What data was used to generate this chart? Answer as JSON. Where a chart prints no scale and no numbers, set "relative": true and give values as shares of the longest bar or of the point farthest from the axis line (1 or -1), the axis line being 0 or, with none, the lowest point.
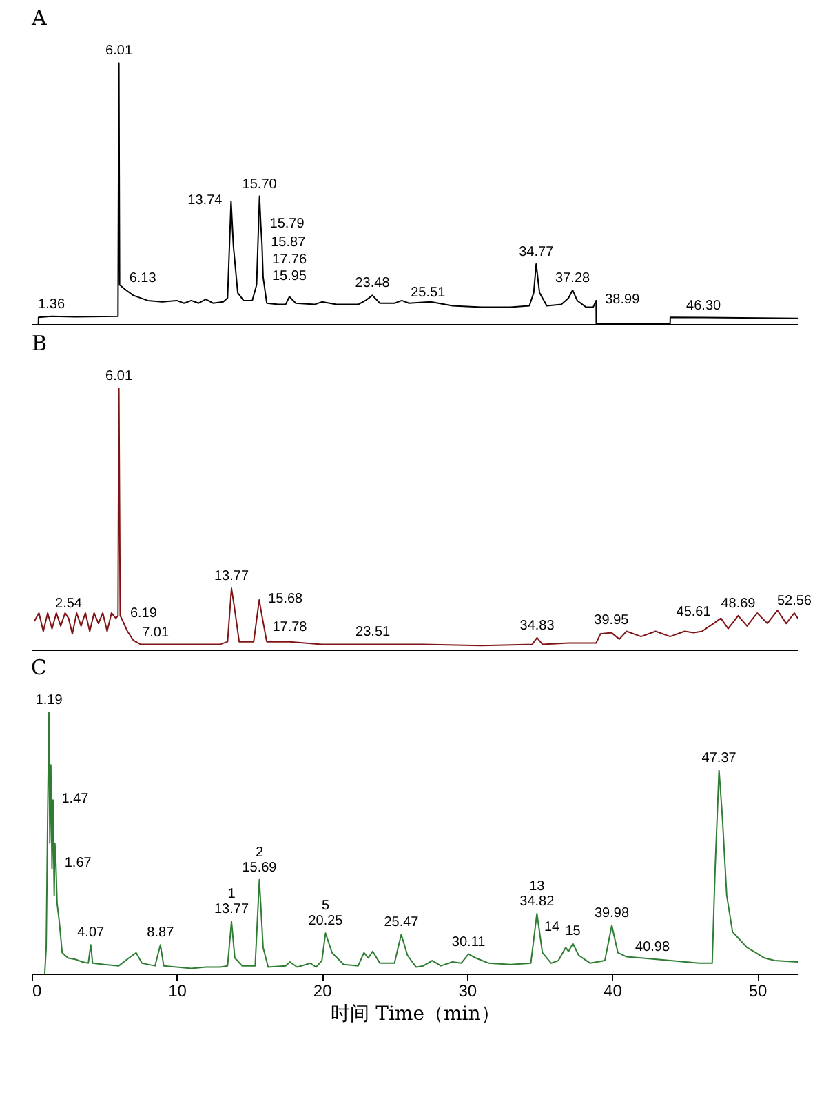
{
  "chart_data": [
    {
      "type": "line",
      "title": "A",
      "relative": true,
      "xlim": [
        0,
        52.8
      ],
      "xticks": [
        0,
        10,
        20,
        30,
        40,
        50
      ],
      "tick_labels": false,
      "series": [
        {
          "color": "#000000",
          "x": [
            0.46,
            0.47,
            1.36,
            3,
            5.95,
            6.01,
            6.06,
            6.5,
            7,
            8,
            9,
            10,
            10.5,
            11,
            11.5,
            12,
            12.5,
            13.2,
            13.5,
            13.74,
            13.9,
            14.2,
            14.6,
            15.2,
            15.5,
            15.7,
            15.79,
            15.87,
            15.95,
            16.2,
            17,
            17.5,
            17.76,
            18.2,
            19.5,
            20,
            21,
            22.5,
            23,
            23.48,
            24,
            25,
            25.51,
            26,
            27.5,
            29,
            31,
            33,
            34.3,
            34.6,
            34.77,
            35,
            35.5,
            36.5,
            37,
            37.28,
            37.6,
            38.2,
            38.7,
            38.9,
            38.91,
            44,
            44.01,
            46.3,
            52.8
          ],
          "values": [
            0,
            0.026,
            0.03,
            0.028,
            0.03,
            1.0,
            0.15,
            0.13,
            0.11,
            0.09,
            0.085,
            0.09,
            0.08,
            0.09,
            0.08,
            0.095,
            0.08,
            0.085,
            0.1,
            0.47,
            0.3,
            0.12,
            0.09,
            0.09,
            0.15,
            0.49,
            0.38,
            0.31,
            0.18,
            0.08,
            0.075,
            0.075,
            0.105,
            0.08,
            0.075,
            0.085,
            0.075,
            0.075,
            0.09,
            0.11,
            0.08,
            0.08,
            0.09,
            0.08,
            0.085,
            0.07,
            0.065,
            0.065,
            0.07,
            0.12,
            0.23,
            0.12,
            0.07,
            0.075,
            0.1,
            0.13,
            0.09,
            0.065,
            0.065,
            0.09,
            0,
            0,
            0.026,
            0.025,
            0.022
          ]
        }
      ],
      "annotations": [
        {
          "text": "1.36",
          "x": 1.36,
          "y": 0.03
        },
        {
          "text": "6.01",
          "x": 6.01,
          "y": 1.0
        },
        {
          "text": "6.13",
          "x": 6.13,
          "y": 0.15
        },
        {
          "text": "13.74",
          "x": 13.74,
          "y": 0.47
        },
        {
          "text": "15.70",
          "x": 15.7,
          "y": 0.49
        },
        {
          "text": "15.79",
          "x": 15.79,
          "y": 0.38
        },
        {
          "text": "15.87",
          "x": 15.87,
          "y": 0.31
        },
        {
          "text": "15.95",
          "x": 15.95,
          "y": 0.18
        },
        {
          "text": "17.76",
          "x": 17.76,
          "y": 0.105
        },
        {
          "text": "23.48",
          "x": 23.48,
          "y": 0.11
        },
        {
          "text": "25.51",
          "x": 25.51,
          "y": 0.09
        },
        {
          "text": "34.77",
          "x": 34.77,
          "y": 0.23
        },
        {
          "text": "37.28",
          "x": 37.28,
          "y": 0.13
        },
        {
          "text": "38.99",
          "x": 38.9,
          "y": 0.09
        },
        {
          "text": "46.30",
          "x": 46.3,
          "y": 0.025
        }
      ]
    },
    {
      "type": "line",
      "title": "B",
      "relative": true,
      "xlim": [
        0,
        52.8
      ],
      "xticks": [
        0,
        10,
        20,
        30,
        40,
        50
      ],
      "tick_labels": false,
      "series": [
        {
          "color": "#7f1416",
          "x": [
            0.2,
            0.5,
            0.8,
            1.1,
            1.4,
            1.7,
            2,
            2.3,
            2.54,
            2.8,
            3.1,
            3.4,
            3.7,
            4,
            4.3,
            4.6,
            4.9,
            5.2,
            5.5,
            5.8,
            5.95,
            6.01,
            6.1,
            6.19,
            6.6,
            7.01,
            7.5,
            9,
            11,
            13,
            13.5,
            13.77,
            14,
            14.3,
            15.3,
            15.68,
            15.9,
            16.2,
            17.78,
            20,
            23.51,
            27,
            31,
            34.5,
            34.83,
            35.2,
            37,
            38.9,
            39.2,
            39.95,
            40.5,
            41,
            42,
            43,
            44,
            45,
            45.61,
            46.2,
            47,
            47.5,
            48,
            48.69,
            49.3,
            50,
            50.7,
            51.4,
            52,
            52.56,
            52.8
          ],
          "values": [
            0.11,
            0.14,
            0.07,
            0.14,
            0.08,
            0.14,
            0.09,
            0.14,
            0.12,
            0.06,
            0.14,
            0.09,
            0.14,
            0.07,
            0.14,
            0.1,
            0.14,
            0.07,
            0.14,
            0.12,
            0.13,
            1.0,
            0.13,
            0.12,
            0.07,
            0.035,
            0.02,
            0.02,
            0.02,
            0.02,
            0.03,
            0.235,
            0.15,
            0.03,
            0.03,
            0.19,
            0.12,
            0.03,
            0.03,
            0.02,
            0.02,
            0.02,
            0.015,
            0.02,
            0.045,
            0.02,
            0.025,
            0.025,
            0.06,
            0.065,
            0.04,
            0.07,
            0.05,
            0.07,
            0.05,
            0.07,
            0.065,
            0.07,
            0.1,
            0.12,
            0.08,
            0.13,
            0.09,
            0.14,
            0.1,
            0.15,
            0.1,
            0.14,
            0.12
          ]
        }
      ],
      "annotations": [
        {
          "text": "2.54",
          "x": 2.54,
          "y": 0.12
        },
        {
          "text": "6.01",
          "x": 6.01,
          "y": 1.0
        },
        {
          "text": "6.19",
          "x": 6.19,
          "y": 0.12
        },
        {
          "text": "7.01",
          "x": 7.01,
          "y": 0.035
        },
        {
          "text": "13.77",
          "x": 13.77,
          "y": 0.235
        },
        {
          "text": "15.68",
          "x": 15.68,
          "y": 0.19
        },
        {
          "text": "17.78",
          "x": 17.78,
          "y": 0.03
        },
        {
          "text": "23.51",
          "x": 23.51,
          "y": 0.02
        },
        {
          "text": "34.83",
          "x": 34.83,
          "y": 0.045
        },
        {
          "text": "39.95",
          "x": 39.95,
          "y": 0.065
        },
        {
          "text": "45.61",
          "x": 45.61,
          "y": 0.065
        },
        {
          "text": "48.69",
          "x": 48.69,
          "y": 0.13
        },
        {
          "text": "52.56",
          "x": 52.56,
          "y": 0.14
        }
      ]
    },
    {
      "type": "line",
      "title": "C",
      "relative": true,
      "xlim": [
        0,
        52.8
      ],
      "xticks": [
        0,
        10,
        20,
        30,
        40,
        50
      ],
      "xlabel": "时间 Time（min）",
      "series": [
        {
          "color": "#2e7d32",
          "x": [
            0.9,
            1.0,
            1.1,
            1.19,
            1.25,
            1.32,
            1.4,
            1.47,
            1.55,
            1.6,
            1.67,
            1.75,
            1.9,
            2.1,
            2.5,
            3,
            3.5,
            3.9,
            4.07,
            4.2,
            5,
            6,
            6.7,
            7.2,
            7.6,
            8.5,
            8.87,
            9.1,
            10,
            11,
            12,
            13,
            13.5,
            13.77,
            14,
            14.5,
            15.4,
            15.69,
            15.95,
            16.3,
            17.5,
            17.8,
            18.3,
            19.2,
            19.6,
            20,
            20.25,
            20.7,
            21.5,
            22.5,
            22.9,
            23.2,
            23.5,
            24,
            25,
            25.47,
            25.9,
            26.5,
            27,
            27.6,
            28.2,
            29,
            29.6,
            30.11,
            30.6,
            31.5,
            33,
            34.4,
            34.82,
            35.2,
            35.8,
            36.3,
            36.8,
            37,
            37.3,
            37.7,
            38.5,
            39.5,
            39.98,
            40.4,
            40.98,
            42,
            44,
            46,
            46.9,
            47.1,
            47.37,
            47.6,
            47.9,
            48.3,
            48.8,
            49.3,
            49.9,
            50.5,
            51.2,
            52.8
          ],
          "values": [
            0,
            0.1,
            0.6,
            1.0,
            0.5,
            0.8,
            0.4,
            0.665,
            0.3,
            0.5,
            0.42,
            0.27,
            0.2,
            0.08,
            0.06,
            0.055,
            0.045,
            0.04,
            0.11,
            0.04,
            0.035,
            0.03,
            0.06,
            0.08,
            0.04,
            0.03,
            0.11,
            0.03,
            0.025,
            0.02,
            0.025,
            0.025,
            0.03,
            0.2,
            0.06,
            0.03,
            0.03,
            0.36,
            0.1,
            0.025,
            0.03,
            0.045,
            0.025,
            0.04,
            0.025,
            0.05,
            0.155,
            0.08,
            0.035,
            0.03,
            0.08,
            0.06,
            0.085,
            0.04,
            0.04,
            0.15,
            0.07,
            0.025,
            0.03,
            0.05,
            0.03,
            0.045,
            0.04,
            0.075,
            0.06,
            0.04,
            0.035,
            0.04,
            0.23,
            0.08,
            0.04,
            0.05,
            0.1,
            0.085,
            0.115,
            0.07,
            0.04,
            0.05,
            0.185,
            0.08,
            0.065,
            0.06,
            0.05,
            0.04,
            0.04,
            0.4,
            0.78,
            0.6,
            0.3,
            0.16,
            0.13,
            0.1,
            0.08,
            0.06,
            0.05,
            0.045
          ]
        }
      ],
      "annotations": [
        {
          "text": "1.19",
          "x": 1.19,
          "y": 1.0
        },
        {
          "text": "1.47",
          "x": 1.47,
          "y": 0.665
        },
        {
          "text": "1.67",
          "x": 1.67,
          "y": 0.42
        },
        {
          "text": "4.07",
          "x": 4.07,
          "y": 0.11
        },
        {
          "text": "8.87",
          "x": 8.87,
          "y": 0.11
        },
        {
          "text": "13.77",
          "x": 13.77,
          "y": 0.2
        },
        {
          "text": "1",
          "x": 13.77,
          "y": 0.2
        },
        {
          "text": "15.69",
          "x": 15.69,
          "y": 0.36
        },
        {
          "text": "2",
          "x": 15.69,
          "y": 0.36
        },
        {
          "text": "20.25",
          "x": 20.25,
          "y": 0.155
        },
        {
          "text": "5",
          "x": 20.25,
          "y": 0.155
        },
        {
          "text": "25.47",
          "x": 25.47,
          "y": 0.15
        },
        {
          "text": "30.11",
          "x": 30.11,
          "y": 0.075
        },
        {
          "text": "34.82",
          "x": 34.82,
          "y": 0.23
        },
        {
          "text": "13",
          "x": 34.82,
          "y": 0.23
        },
        {
          "text": "14",
          "x": 36.8,
          "y": 0.1
        },
        {
          "text": "15",
          "x": 37.3,
          "y": 0.115
        },
        {
          "text": "39.98",
          "x": 39.98,
          "y": 0.185
        },
        {
          "text": "40.98",
          "x": 40.98,
          "y": 0.065
        },
        {
          "text": "47.37",
          "x": 47.37,
          "y": 0.78
        }
      ]
    }
  ]
}
